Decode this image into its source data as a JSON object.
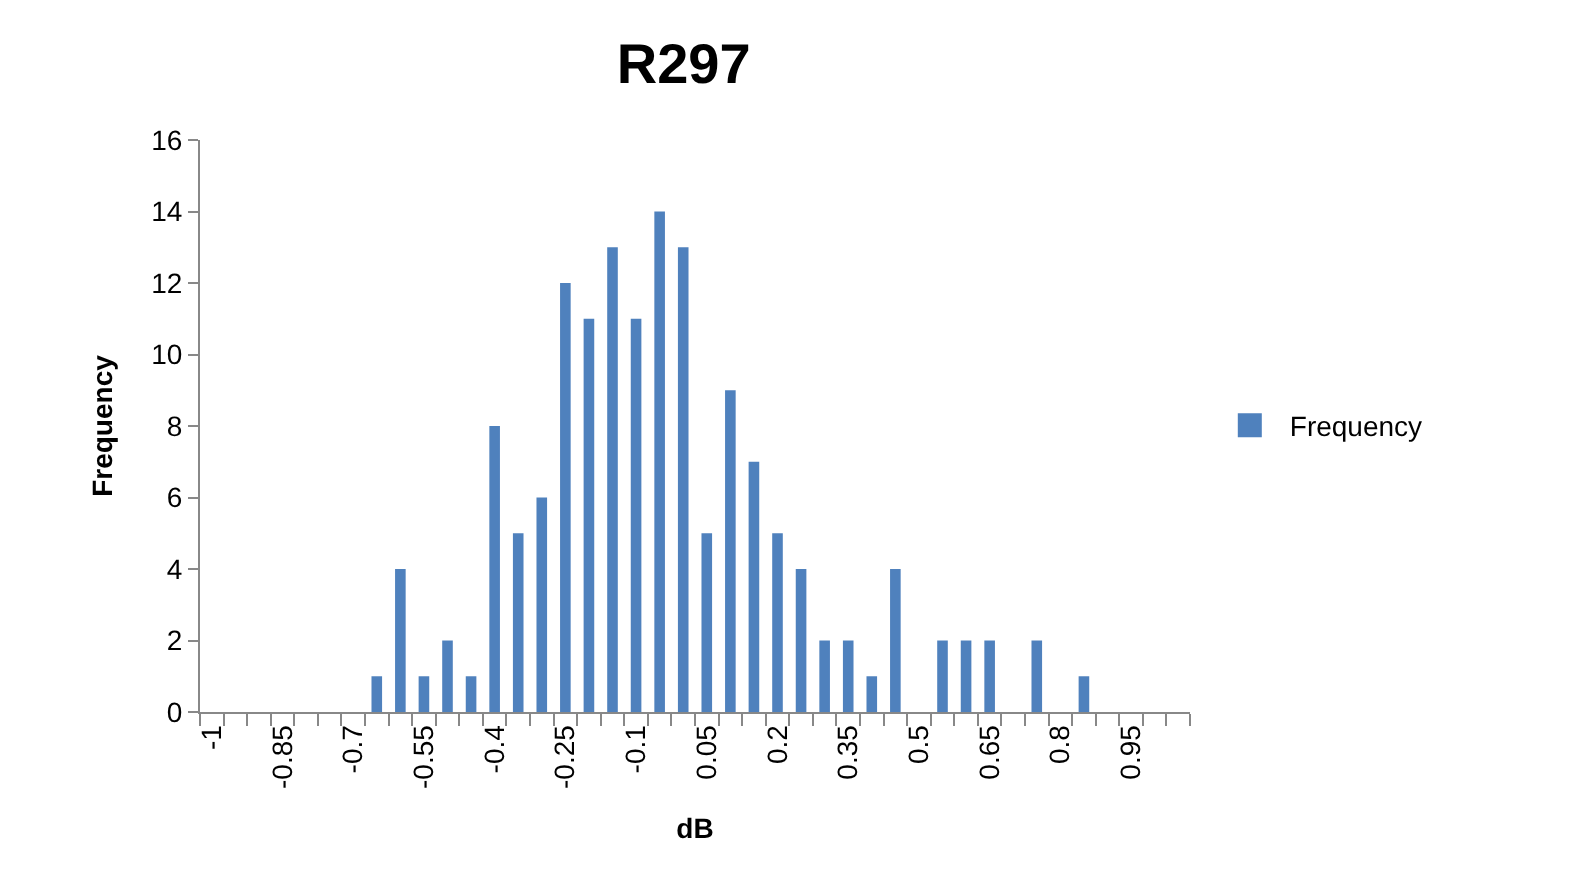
{
  "chart_data": {
    "type": "bar",
    "title": "R297",
    "xlabel": "dB",
    "ylabel": "Frequency",
    "categories": [
      "-1",
      null,
      null,
      "-0.85",
      null,
      null,
      "-0.7",
      null,
      null,
      "-0.55",
      null,
      null,
      "-0.4",
      null,
      null,
      "-0.25",
      null,
      null,
      "-0.1",
      null,
      null,
      "0.05",
      null,
      null,
      "0.2",
      null,
      null,
      "0.35",
      null,
      null,
      "0.5",
      null,
      null,
      "0.65",
      null,
      null,
      "0.8",
      null,
      null,
      "0.95",
      null,
      null
    ],
    "series": [
      {
        "name": "Frequency",
        "color": "#4f81bd",
        "values": [
          0,
          0,
          0,
          0,
          0,
          0,
          0,
          1,
          4,
          1,
          2,
          1,
          8,
          5,
          6,
          12,
          11,
          13,
          11,
          14,
          13,
          5,
          9,
          7,
          5,
          4,
          2,
          2,
          1,
          4,
          0,
          2,
          2,
          2,
          0,
          2,
          0,
          1,
          0,
          0,
          0,
          0
        ]
      }
    ],
    "ylim": [
      0,
      16
    ],
    "yticks": [
      0,
      2,
      4,
      6,
      8,
      10,
      12,
      14,
      16
    ],
    "legend": "right"
  }
}
